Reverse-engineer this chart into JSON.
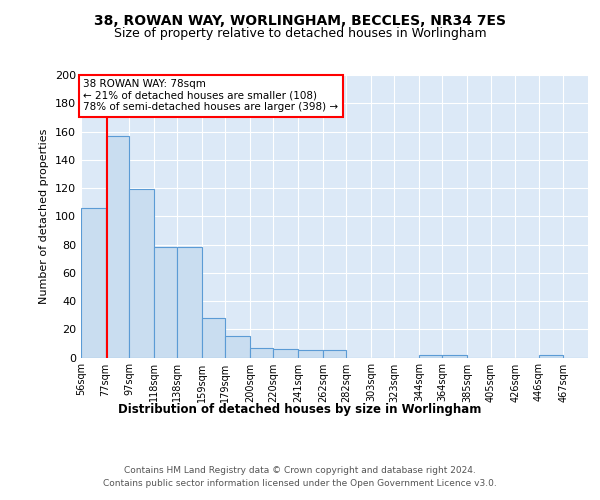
{
  "title1": "38, ROWAN WAY, WORLINGHAM, BECCLES, NR34 7ES",
  "title2": "Size of property relative to detached houses in Worlingham",
  "xlabel": "Distribution of detached houses by size in Worlingham",
  "ylabel": "Number of detached properties",
  "bin_labels": [
    "56sqm",
    "77sqm",
    "97sqm",
    "118sqm",
    "138sqm",
    "159sqm",
    "179sqm",
    "200sqm",
    "220sqm",
    "241sqm",
    "262sqm",
    "282sqm",
    "303sqm",
    "323sqm",
    "344sqm",
    "364sqm",
    "385sqm",
    "405sqm",
    "426sqm",
    "446sqm",
    "467sqm"
  ],
  "bar_heights": [
    106,
    157,
    119,
    78,
    78,
    28,
    15,
    7,
    6,
    5,
    5,
    0,
    0,
    0,
    2,
    2,
    0,
    0,
    0,
    2,
    0
  ],
  "bar_color": "#c9ddf0",
  "bar_edge_color": "#5b9bd5",
  "background_color": "#dce9f7",
  "red_line_x": 78,
  "annotation_line1": "38 ROWAN WAY: 78sqm",
  "annotation_line2": "← 21% of detached houses are smaller (108)",
  "annotation_line3": "78% of semi-detached houses are larger (398) →",
  "annotation_box_color": "white",
  "annotation_box_edge": "red",
  "footer1": "Contains HM Land Registry data © Crown copyright and database right 2024.",
  "footer2": "Contains public sector information licensed under the Open Government Licence v3.0.",
  "ylim": [
    0,
    200
  ],
  "yticks": [
    0,
    20,
    40,
    60,
    80,
    100,
    120,
    140,
    160,
    180,
    200
  ],
  "bin_edges": [
    56,
    77,
    97,
    118,
    138,
    159,
    179,
    200,
    220,
    241,
    262,
    282,
    303,
    323,
    344,
    364,
    385,
    405,
    426,
    446,
    467
  ]
}
